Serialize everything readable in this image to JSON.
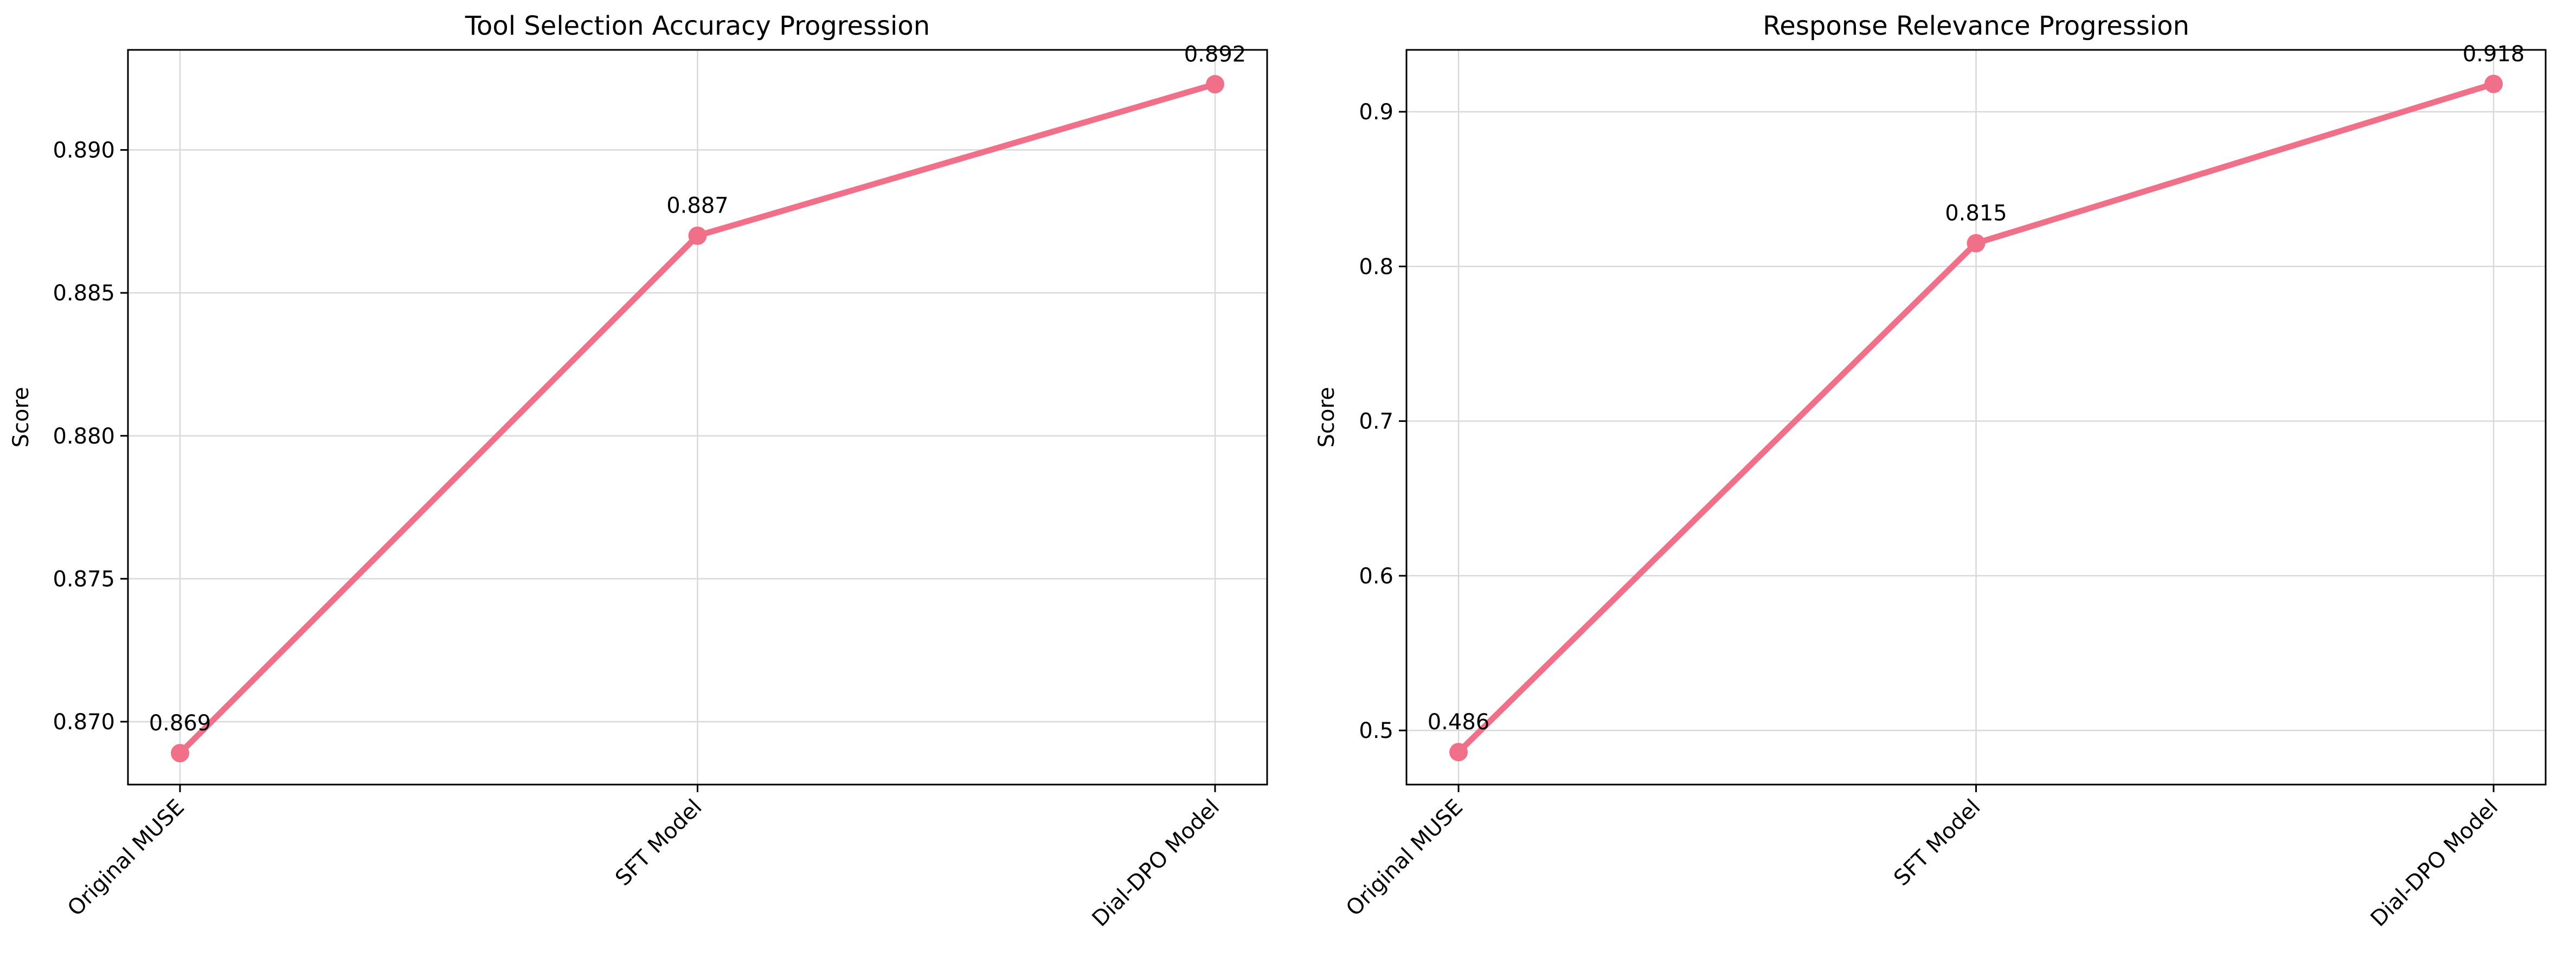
{
  "chart_data": [
    {
      "type": "line",
      "title": "Tool Selection Accuracy Progression",
      "xlabel": "",
      "ylabel": "Score",
      "categories": [
        "Original MUSE",
        "SFT Model",
        "Dial-DPO Model"
      ],
      "series": [
        {
          "values": [
            0.8689,
            0.887,
            0.8923
          ]
        }
      ],
      "data_labels": [
        "0.869",
        "0.887",
        "0.892"
      ],
      "ylim": [
        0.8678,
        0.8935
      ],
      "yticks": [
        0.87,
        0.875,
        0.88,
        0.885,
        0.89
      ],
      "ytick_labels": [
        "0.870",
        "0.875",
        "0.880",
        "0.885",
        "0.890"
      ],
      "grid": true,
      "color": "#f07089"
    },
    {
      "type": "line",
      "title": "Response Relevance Progression",
      "xlabel": "",
      "ylabel": "Score",
      "categories": [
        "Original MUSE",
        "SFT Model",
        "Dial-DPO Model"
      ],
      "series": [
        {
          "values": [
            0.486,
            0.815,
            0.918
          ]
        }
      ],
      "data_labels": [
        "0.486",
        "0.815",
        "0.918"
      ],
      "ylim": [
        0.465,
        0.94
      ],
      "yticks": [
        0.5,
        0.6,
        0.7,
        0.8,
        0.9
      ],
      "ytick_labels": [
        "0.5",
        "0.6",
        "0.7",
        "0.8",
        "0.9"
      ],
      "grid": true,
      "color": "#f07089"
    }
  ]
}
